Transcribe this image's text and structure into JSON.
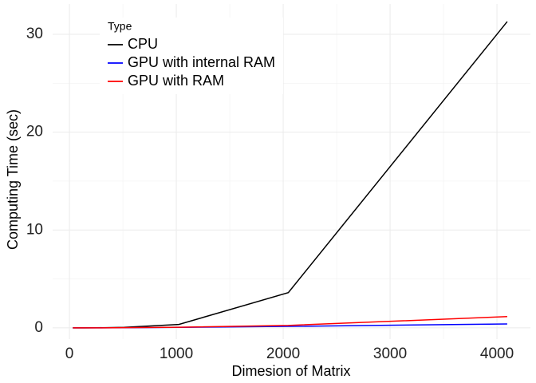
{
  "chart_data": {
    "type": "line",
    "xlabel": "Dimesion of Matrix",
    "ylabel": "Computing Time (sec)",
    "x": [
      32,
      64,
      128,
      256,
      512,
      1024,
      2048,
      4096
    ],
    "series": [
      {
        "name": "CPU",
        "color": "#000000",
        "values": [
          0,
          0,
          0,
          0.01,
          0.05,
          0.35,
          3.6,
          31.3
        ]
      },
      {
        "name": "GPU with internal RAM",
        "color": "#0000ff",
        "values": [
          0,
          0,
          0,
          0,
          0.01,
          0.05,
          0.15,
          0.4
        ]
      },
      {
        "name": "GPU with RAM",
        "color": "#ff0000",
        "values": [
          0,
          0,
          0,
          0,
          0.02,
          0.06,
          0.25,
          1.15
        ]
      }
    ],
    "legend_title": "Type",
    "legend_position": "top-left",
    "xlim": [
      -157,
      4313
    ],
    "ylim": [
      -1.15,
      33.1
    ],
    "xticks": [
      0,
      1000,
      2000,
      3000,
      4000
    ],
    "yticks": [
      0,
      10,
      20,
      30
    ],
    "grid": true,
    "minor_grid": true
  }
}
